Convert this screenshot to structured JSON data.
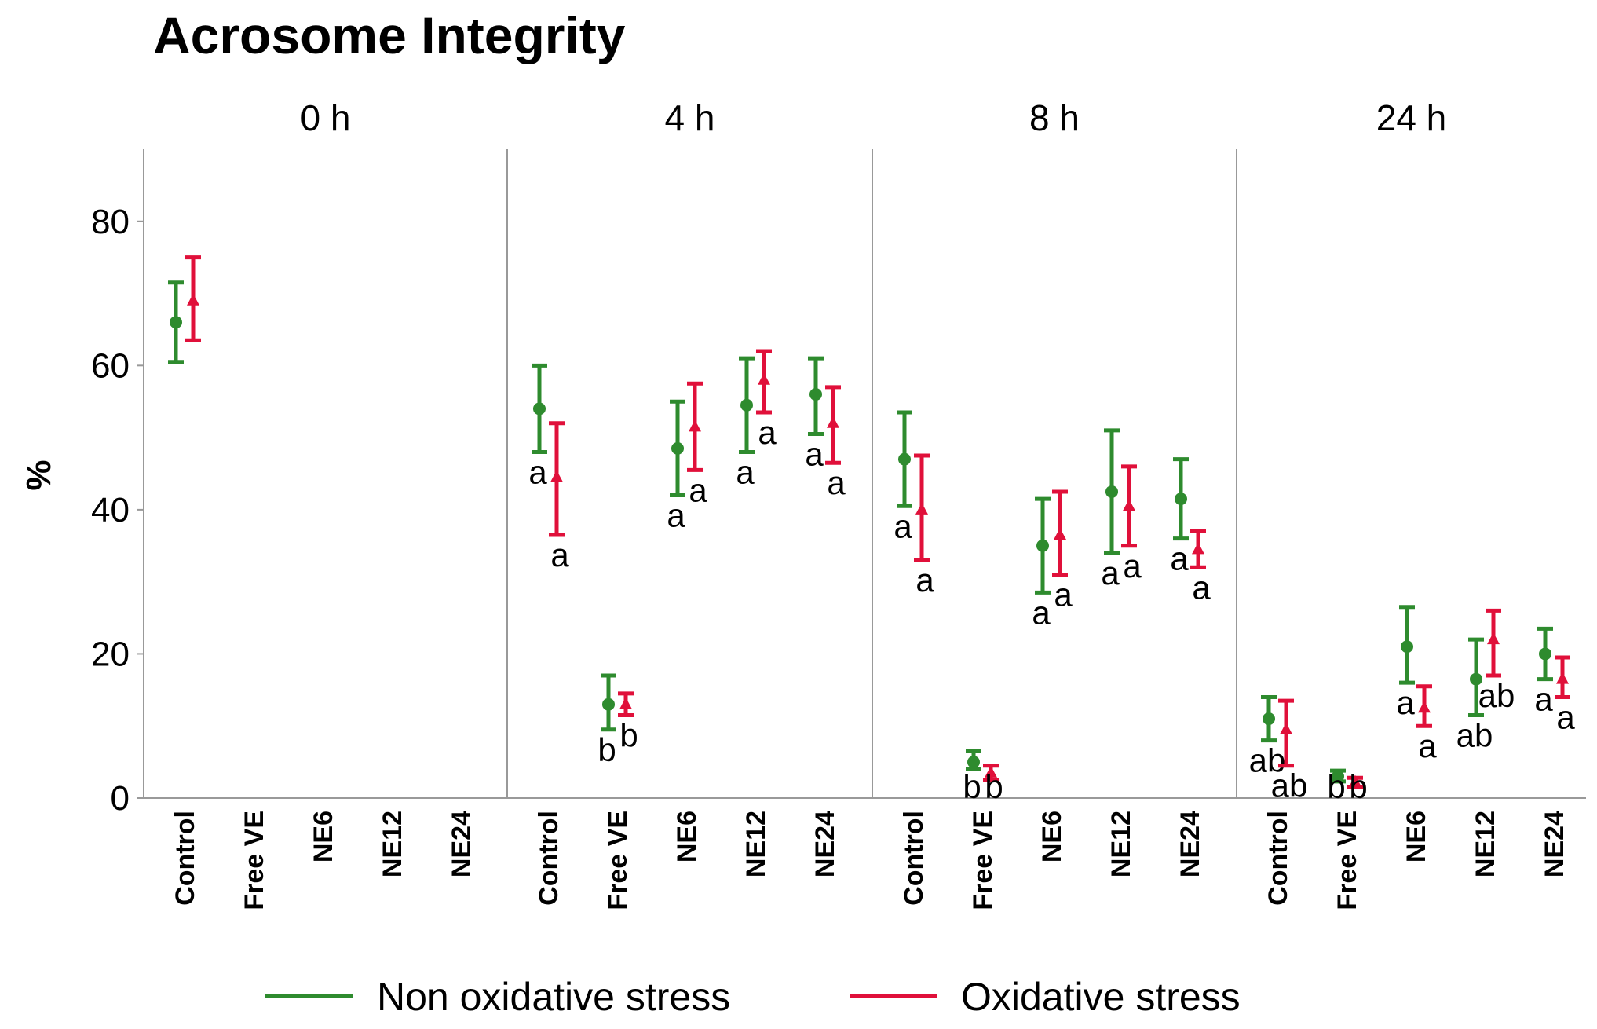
{
  "chart_data": {
    "type": "scatter",
    "subtype": "error-bar (mean ± CI), faceted by time",
    "title": "Acrosome Integrity",
    "ylabel": "%",
    "xlabel": "",
    "ylim": [
      0,
      90
    ],
    "yticks": [
      0,
      20,
      40,
      60,
      80
    ],
    "grid": false,
    "legend_position": "bottom-center",
    "categories": [
      "Control",
      "Free VE",
      "NE6",
      "NE12",
      "NE24"
    ],
    "legend": [
      {
        "label": "Non oxidative stress",
        "color": "#2e8b2e"
      },
      {
        "label": "Oxidative stress",
        "color": "#e0103a"
      }
    ],
    "panels": [
      {
        "label": "0 h",
        "series": [
          {
            "name": "Non oxidative stress",
            "marker": "circle",
            "color": "#2e8b2e",
            "mean": [
              66,
              null,
              null,
              null,
              null
            ],
            "lower": [
              60.5,
              null,
              null,
              null,
              null
            ],
            "upper": [
              71.5,
              null,
              null,
              null,
              null
            ],
            "letters": [
              "",
              "",
              "",
              "",
              ""
            ]
          },
          {
            "name": "Oxidative stress",
            "marker": "triangle",
            "color": "#e0103a",
            "mean": [
              69,
              null,
              null,
              null,
              null
            ],
            "lower": [
              63.5,
              null,
              null,
              null,
              null
            ],
            "upper": [
              75,
              null,
              null,
              null,
              null
            ],
            "letters": [
              "",
              "",
              "",
              "",
              ""
            ]
          }
        ]
      },
      {
        "label": "4 h",
        "series": [
          {
            "name": "Non oxidative stress",
            "marker": "circle",
            "color": "#2e8b2e",
            "mean": [
              54,
              13,
              48.5,
              54.5,
              56
            ],
            "lower": [
              48,
              9.5,
              42,
              48,
              50.5
            ],
            "upper": [
              60,
              17,
              55,
              61,
              61
            ],
            "letters": [
              "a",
              "b",
              "a",
              "a",
              "a"
            ]
          },
          {
            "name": "Oxidative stress",
            "marker": "triangle",
            "color": "#e0103a",
            "mean": [
              44.5,
              13,
              51.5,
              58,
              52
            ],
            "lower": [
              36.5,
              11.5,
              45.5,
              53.5,
              46.5
            ],
            "upper": [
              52,
              14.5,
              57.5,
              62,
              57
            ],
            "letters": [
              "a",
              "b",
              "a",
              "a",
              "a"
            ]
          }
        ]
      },
      {
        "label": "8 h",
        "series": [
          {
            "name": "Non oxidative stress",
            "marker": "circle",
            "color": "#2e8b2e",
            "mean": [
              47,
              5,
              35,
              42.5,
              41.5
            ],
            "lower": [
              40.5,
              4,
              28.5,
              34,
              36
            ],
            "upper": [
              53.5,
              6.5,
              41.5,
              51,
              47
            ],
            "letters": [
              "a",
              "b",
              "a",
              "a",
              "a"
            ]
          },
          {
            "name": "Oxidative stress",
            "marker": "triangle",
            "color": "#e0103a",
            "mean": [
              40,
              3.5,
              36.5,
              40.5,
              34.5
            ],
            "lower": [
              33,
              2.5,
              31,
              35,
              32
            ],
            "upper": [
              47.5,
              4.5,
              42.5,
              46,
              37
            ],
            "letters": [
              "a",
              "b",
              "a",
              "a",
              "a"
            ]
          }
        ]
      },
      {
        "label": "24 h",
        "series": [
          {
            "name": "Non oxidative stress",
            "marker": "circle",
            "color": "#2e8b2e",
            "mean": [
              11,
              3,
              21,
              16.5,
              20
            ],
            "lower": [
              8,
              2.3,
              16,
              11.5,
              16.5
            ],
            "upper": [
              14,
              3.8,
              26.5,
              22,
              23.5
            ],
            "letters": [
              "ab",
              "b",
              "a",
              "ab",
              "a"
            ]
          },
          {
            "name": "Oxidative stress",
            "marker": "triangle",
            "color": "#e0103a",
            "mean": [
              9.5,
              2.2,
              12.5,
              22,
              16.5
            ],
            "lower": [
              4.5,
              1.5,
              10,
              17,
              14
            ],
            "upper": [
              13.5,
              2.8,
              15.5,
              26,
              19.5
            ],
            "letters": [
              "ab",
              "b",
              "a",
              "ab",
              "a"
            ]
          }
        ]
      }
    ]
  }
}
